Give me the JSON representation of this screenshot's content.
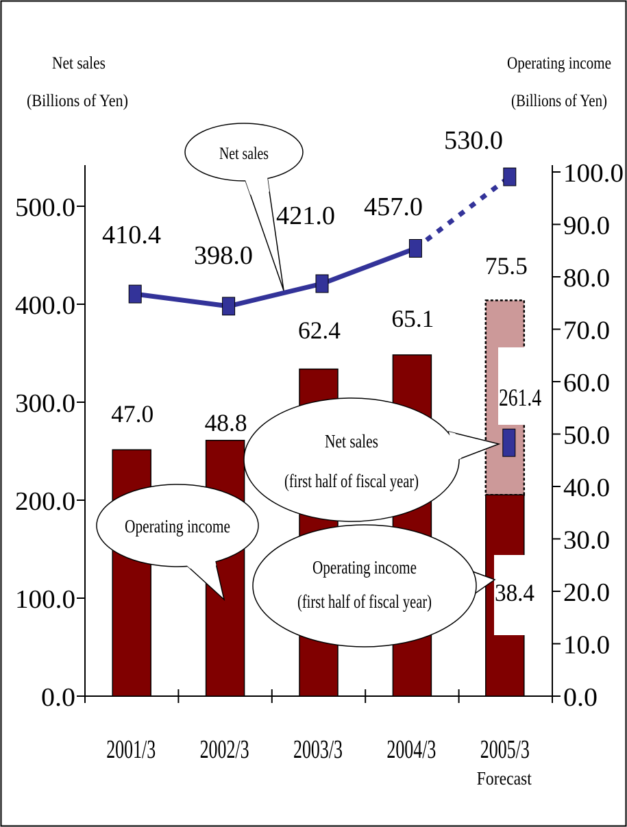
{
  "chart_data": {
    "type": "bar",
    "categories": [
      "2001/3",
      "2002/3",
      "2003/3",
      "2004/3",
      "2005/3"
    ],
    "category_sublabels": [
      "",
      "",
      "",
      "",
      "Forecast"
    ],
    "left_axis": {
      "title_line1": "Net sales",
      "title_line2": "(Billions of Yen)",
      "range": [
        0,
        500
      ],
      "ticks": [
        "0.0",
        "100.0",
        "200.0",
        "300.0",
        "400.0",
        "500.0"
      ]
    },
    "right_axis": {
      "title_line1": "Operating income",
      "title_line2": "(Billions of Yen)",
      "range": [
        0,
        100
      ],
      "ticks": [
        "0.0",
        "10.0",
        "20.0",
        "30.0",
        "40.0",
        "50.0",
        "60.0",
        "70.0",
        "80.0",
        "90.0",
        "100.0"
      ]
    },
    "series": [
      {
        "name": "Operating income",
        "type": "bar",
        "axis": "right",
        "values": [
          47.0,
          48.8,
          62.4,
          65.1,
          75.5
        ],
        "labels": [
          "47.0",
          "48.8",
          "62.4",
          "65.1",
          "75.5"
        ],
        "color": "#800000",
        "forecast_color": "#cc9999"
      },
      {
        "name": "Net sales",
        "type": "line",
        "axis": "left",
        "values": [
          410.4,
          398.0,
          421.0,
          457.0,
          530.0
        ],
        "labels": [
          "410.4",
          "398.0",
          "421.0",
          "457.0",
          "530.0"
        ],
        "color": "#333399"
      },
      {
        "name": "Operating income (first half of fiscal year)",
        "type": "bar",
        "axis": "right",
        "values": [
          null,
          null,
          null,
          null,
          38.4
        ],
        "labels": [
          "",
          "",
          "",
          "",
          "38.4"
        ],
        "color": "#800000"
      },
      {
        "name": "Net sales (first half of fiscal year)",
        "type": "point",
        "axis": "left",
        "values": [
          null,
          null,
          null,
          null,
          261.4
        ],
        "labels": [
          "",
          "",
          "",
          "",
          "261.4"
        ],
        "color": "#333399"
      }
    ],
    "callouts": {
      "net_sales": "Net sales",
      "operating_income": "Operating income",
      "h1_sales_line1": "Net sales",
      "h1_sales_line2": "(first half of fiscal year)",
      "h1_income_line1": "Operating income",
      "h1_income_line2": "(first half of fiscal year)"
    },
    "legend": "none",
    "grid": false
  }
}
